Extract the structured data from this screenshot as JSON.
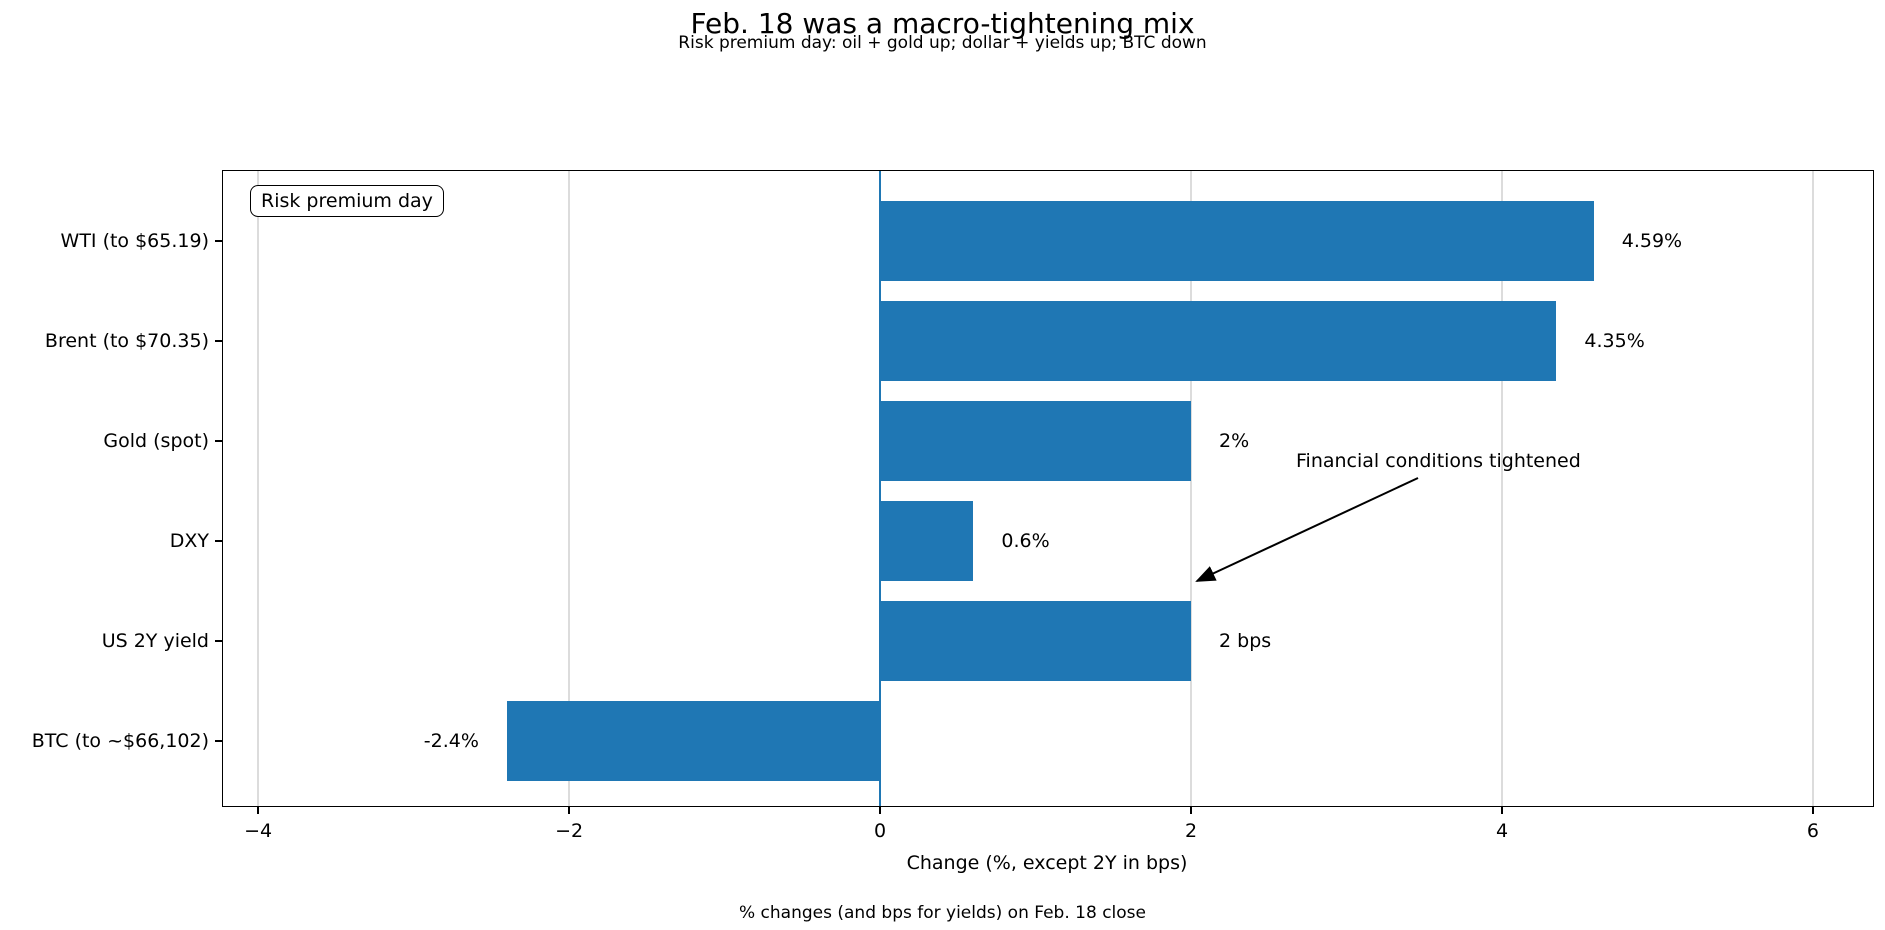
{
  "title": "Feb. 18 was a macro-tightening mix",
  "subtitle": "Risk premium day: oil + gold up; dollar + yields up; BTC down",
  "footer": "% changes (and bps for yields) on Feb. 18 close",
  "annotations": {
    "box_label": "Risk premium day",
    "arrow_text": "Financial conditions tightened"
  },
  "colors": {
    "bar": "#1f77b4",
    "zero_line": "#1f77b4",
    "grid": "#dcdcdc",
    "spine": "#000000",
    "text": "#000000"
  },
  "chart_data": {
    "type": "bar",
    "orientation": "horizontal",
    "title": "Feb. 18 was a macro-tightening mix",
    "subtitle": "Risk premium day: oil + gold up; dollar + yields up; BTC down",
    "categories": [
      "WTI (to $65.19)",
      "Brent (to $70.35)",
      "Gold (spot)",
      "DXY",
      "US 2Y yield",
      "BTC (to ~$66,102)"
    ],
    "values": [
      4.59,
      4.35,
      2.0,
      0.6,
      2.0,
      -2.4
    ],
    "value_labels": [
      "4.59%",
      "4.35%",
      "2%",
      "0.6%",
      "2 bps",
      "-2.4%"
    ],
    "xlabel": "Change (%, except 2Y in bps)",
    "ylabel": "",
    "xlim": [
      -4.226,
      6.386
    ],
    "xticks": [
      -4,
      -2,
      0,
      2,
      4,
      6
    ],
    "xtick_labels": [
      "−4",
      "−2",
      "0",
      "2",
      "4",
      "6"
    ],
    "grid": "vertical",
    "legend": "none",
    "bar_color": "#1f77b4",
    "zero_line_at": 0
  }
}
